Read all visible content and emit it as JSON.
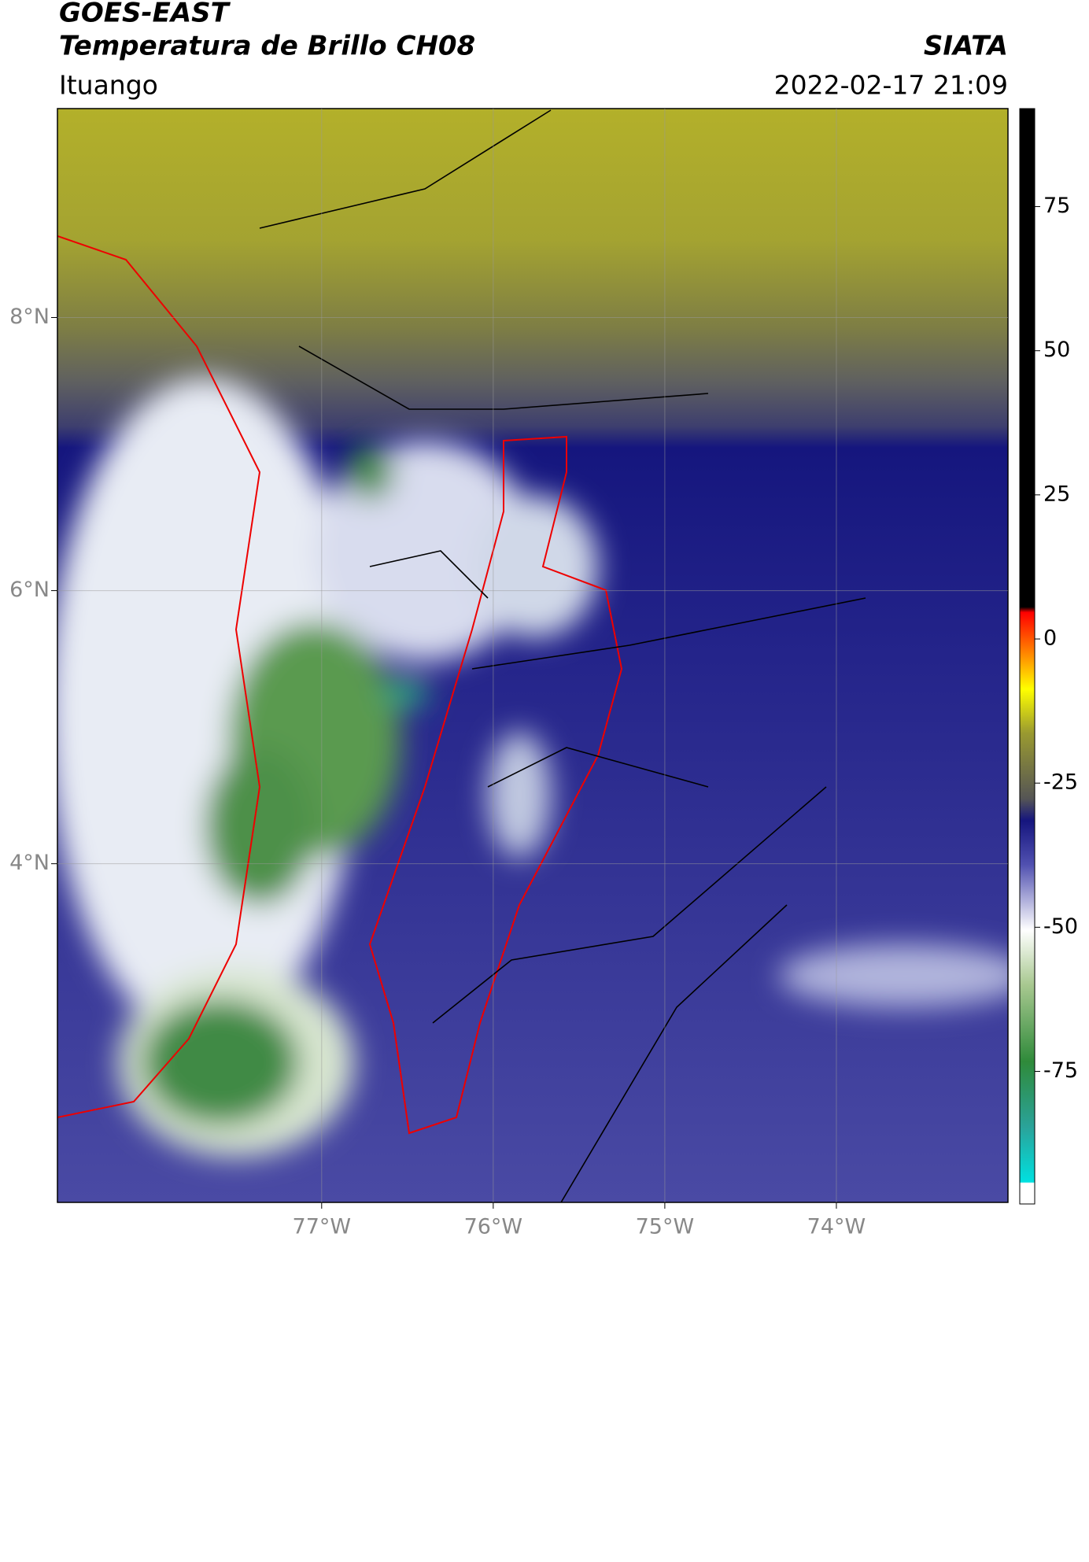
{
  "header": {
    "title": "GOES-EAST",
    "subtitle": "Temperatura de Brillo CH08",
    "brand": "SIATA",
    "location": "Ituango",
    "datetime": "2022-02-17 21:09"
  },
  "map": {
    "lonlim": [
      -78.54,
      -73.0
    ],
    "latlim": [
      1.52,
      9.53
    ],
    "lonticks": [
      {
        "value": -77,
        "label": "77°W"
      },
      {
        "value": -76,
        "label": "76°W"
      },
      {
        "value": -75,
        "label": "75°W"
      },
      {
        "value": -74,
        "label": "74°W"
      }
    ],
    "latticks": [
      {
        "value": 8,
        "label": "8°N"
      },
      {
        "value": 6,
        "label": "6°N"
      },
      {
        "value": 4,
        "label": "4°N"
      }
    ]
  },
  "colorbar": {
    "lim": [
      -98,
      92
    ],
    "ticks": [
      75,
      50,
      25,
      0,
      -25,
      -50,
      -75
    ]
  }
}
